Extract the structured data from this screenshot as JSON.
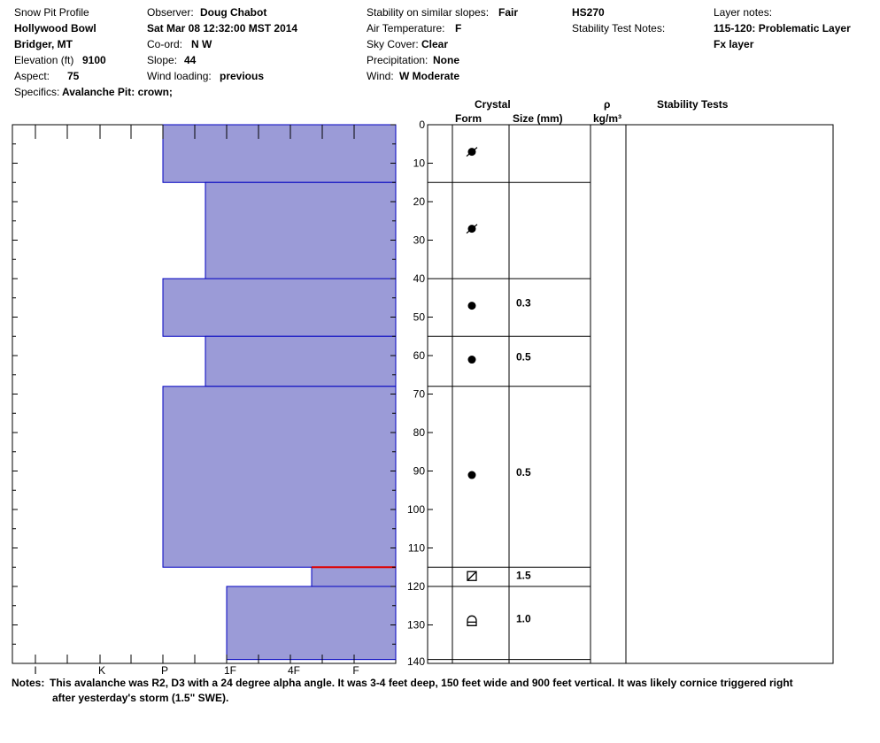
{
  "header": {
    "profile_label": "Snow Pit Profile",
    "location": "Hollywood Bowl",
    "region": "Bridger, MT",
    "elevation_label": "Elevation (ft)",
    "elevation_value": "9100",
    "aspect_label": "Aspect:",
    "aspect_value": "75",
    "specifics_label": "Specifics:",
    "specifics_value": "Avalanche Pit: crown;",
    "observer_label": "Observer:",
    "observer_value": "Doug Chabot",
    "datetime": "Sat Mar 08 12:32:00 MST 2014",
    "coord_label": "Co-ord:",
    "coord_value": "N  W",
    "slope_label": "Slope:",
    "slope_value": "44",
    "wind_loading_label": "Wind loading:",
    "wind_loading_value": "previous",
    "stability_label": "Stability on similar slopes:",
    "stability_value": "Fair",
    "air_temp_label": "Air Temperature:",
    "air_temp_value": "F",
    "sky_label": "Sky Cover:",
    "sky_value": "Clear",
    "precip_label": "Precipitation:",
    "precip_value": "None",
    "wind_label": "Wind:",
    "wind_value": "W Moderate",
    "hs_value": "HS270",
    "stability_notes_label": "Stability Test Notes:",
    "layer_notes_label": "Layer notes:",
    "layer_note_1": "115-120: Problematic Layer",
    "layer_note_2": "Fx layer"
  },
  "columns": {
    "crystal": "Crystal",
    "form": "Form",
    "size": "Size (mm)",
    "rho": "ρ",
    "density_unit": "kg/m³",
    "stability_tests": "Stability Tests"
  },
  "notes": {
    "label": "Notes:",
    "line1": "This avalanche was R2, D3 with a 24 degree alpha angle.  It was 3-4 feet deep, 150 feet wide and 900 feet vertical. It was likely cornice triggered right",
    "line2": "after yesterday's storm (1.5\" SWE)."
  },
  "chart_data": {
    "type": "bar",
    "ylabel": "",
    "xlabel": "",
    "depth_range": [
      0,
      140
    ],
    "depth_ticks": [
      0,
      10,
      20,
      30,
      40,
      50,
      60,
      70,
      80,
      90,
      100,
      110,
      120,
      130,
      140
    ],
    "hardness_scale": [
      "I",
      "K",
      "P",
      "1F",
      "4F",
      "F"
    ],
    "layers": [
      {
        "top": 0,
        "bottom": 15,
        "hardness": "P",
        "form": "decomposing",
        "size": ""
      },
      {
        "top": 15,
        "bottom": 40,
        "hardness": "P+",
        "form": "decomposing",
        "size": ""
      },
      {
        "top": 40,
        "bottom": 55,
        "hardness": "P",
        "form": "rounded",
        "size": "0.3"
      },
      {
        "top": 55,
        "bottom": 68,
        "hardness": "P+",
        "form": "rounded",
        "size": "0.5"
      },
      {
        "top": 68,
        "bottom": 115,
        "hardness": "P",
        "form": "rounded",
        "size": "0.5"
      },
      {
        "top": 115,
        "bottom": 120,
        "hardness": "4F+",
        "form": "faceted-rounded",
        "size": "1.5"
      },
      {
        "top": 120,
        "bottom": 139,
        "hardness": "1F",
        "form": "depth-hoar",
        "size": "1.0"
      }
    ],
    "problematic_layer_depth": 115,
    "colors": {
      "fill": "#9b9bd7",
      "edge": "#0000c0",
      "problem": "#e00000"
    }
  }
}
